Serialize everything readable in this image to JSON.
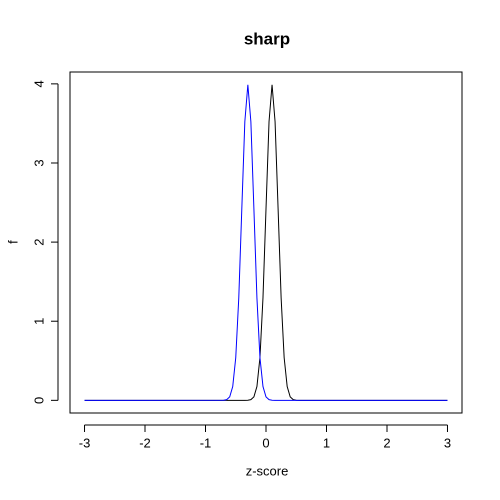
{
  "chart_data": {
    "type": "line",
    "title": "sharp",
    "x_label": "z-score",
    "y_label": "f",
    "x": [
      -3,
      -0.7,
      -0.65,
      -0.6,
      -0.55,
      -0.5,
      -0.45,
      -0.4,
      -0.35,
      -0.3,
      -0.25,
      -0.2,
      -0.15,
      -0.1,
      -0.05,
      0,
      0.05,
      0.1,
      0.15,
      0.2,
      0.25,
      0.3,
      0.35,
      0.4,
      0.45,
      0.5,
      0.55,
      3
    ],
    "series": [
      {
        "color": "#000000",
        "values": [
          0,
          0,
          0,
          0,
          0,
          0,
          0,
          0,
          0,
          0.001,
          0.009,
          0.044,
          0.175,
          0.54,
          1.295,
          2.42,
          3.521,
          3.989,
          3.521,
          2.42,
          1.295,
          0.54,
          0.175,
          0.044,
          0.009,
          0.001,
          0,
          0
        ]
      },
      {
        "color": "#0000ff",
        "values": [
          0,
          0.001,
          0.009,
          0.044,
          0.175,
          0.54,
          1.295,
          2.42,
          3.521,
          3.989,
          3.521,
          2.42,
          1.295,
          0.54,
          0.175,
          0.044,
          0.009,
          0.001,
          0,
          0,
          0,
          0,
          0,
          0,
          0,
          0,
          0,
          0
        ]
      }
    ],
    "xlim": [
      -3.24,
      3.24
    ],
    "ylim": [
      -0.16,
      4.15
    ],
    "xticks": [
      -3,
      -2,
      -1,
      0,
      1,
      2,
      3
    ],
    "yticks": [
      0,
      1,
      2,
      3,
      4
    ]
  }
}
